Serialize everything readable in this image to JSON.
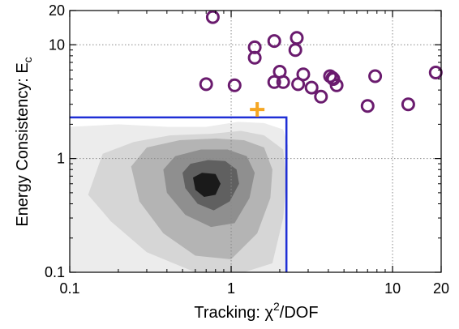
{
  "chart_data": {
    "type": "scatter",
    "x_scale": "log",
    "y_scale": "log",
    "xlim": [
      0.1,
      20
    ],
    "ylim": [
      0.1,
      20
    ],
    "grid": true,
    "xlabel": {
      "main": "Tracking:  χ",
      "sup": "2",
      "rest": "/DOF"
    },
    "ylabel": {
      "main": "Energy Consistency:  E",
      "sub": "c"
    },
    "x_ticks": [
      {
        "value": 0.1,
        "label": "0.1"
      },
      {
        "value": 1,
        "label": "1"
      },
      {
        "value": 10,
        "label": "10"
      },
      {
        "value": 20,
        "label": "20"
      }
    ],
    "y_ticks": [
      {
        "value": 0.1,
        "label": "0.1"
      },
      {
        "value": 1,
        "label": "1"
      },
      {
        "value": 10,
        "label": "10"
      },
      {
        "value": 20,
        "label": "20"
      }
    ],
    "colors": {
      "points": "#6a1b6e",
      "box": "#1f2fd6",
      "marker": "#f5a623",
      "grid": "#888888",
      "contours": [
        "#ececec",
        "#d6d6d6",
        "#b4b4b4",
        "#8f8f8f",
        "#606060",
        "#1a1a1a"
      ]
    },
    "selection_box": {
      "x_max": 2.2,
      "y_max": 2.3
    },
    "special_marker": {
      "x": 1.45,
      "y": 2.7,
      "shape": "plus"
    },
    "points": [
      {
        "x": 0.77,
        "y": 17.5
      },
      {
        "x": 1.4,
        "y": 9.5
      },
      {
        "x": 1.4,
        "y": 7.7
      },
      {
        "x": 1.85,
        "y": 10.8
      },
      {
        "x": 2.55,
        "y": 11.5
      },
      {
        "x": 2.5,
        "y": 9.0
      },
      {
        "x": 0.7,
        "y": 4.5
      },
      {
        "x": 1.05,
        "y": 4.4
      },
      {
        "x": 1.85,
        "y": 4.7
      },
      {
        "x": 2.0,
        "y": 5.8
      },
      {
        "x": 2.1,
        "y": 4.7
      },
      {
        "x": 2.6,
        "y": 4.5
      },
      {
        "x": 2.8,
        "y": 5.5
      },
      {
        "x": 3.15,
        "y": 4.2
      },
      {
        "x": 3.6,
        "y": 3.5
      },
      {
        "x": 4.1,
        "y": 5.3
      },
      {
        "x": 4.25,
        "y": 5.1
      },
      {
        "x": 4.3,
        "y": 5.0
      },
      {
        "x": 4.5,
        "y": 4.4
      },
      {
        "x": 7.0,
        "y": 2.9
      },
      {
        "x": 7.8,
        "y": 5.3
      },
      {
        "x": 12.5,
        "y": 3.0
      },
      {
        "x": 18.5,
        "y": 5.7
      }
    ],
    "density_contours": [
      [
        [
          0.1,
          0.1
        ],
        [
          0.1,
          1.9
        ],
        [
          0.2,
          2.0
        ],
        [
          0.4,
          1.9
        ],
        [
          0.7,
          1.9
        ],
        [
          1.1,
          2.1
        ],
        [
          1.6,
          2.05
        ],
        [
          2.1,
          1.8
        ],
        [
          2.25,
          1.3
        ],
        [
          2.25,
          0.6
        ],
        [
          2.22,
          0.1
        ]
      ],
      [
        [
          0.13,
          0.48
        ],
        [
          0.16,
          1.1
        ],
        [
          0.25,
          1.4
        ],
        [
          0.42,
          1.6
        ],
        [
          0.75,
          1.65
        ],
        [
          1.15,
          1.75
        ],
        [
          1.6,
          1.6
        ],
        [
          2.1,
          1.2
        ],
        [
          2.2,
          0.65
        ],
        [
          2.1,
          0.3
        ],
        [
          1.8,
          0.12
        ],
        [
          1.2,
          0.1
        ],
        [
          0.6,
          0.1
        ],
        [
          0.3,
          0.15
        ],
        [
          0.18,
          0.28
        ]
      ],
      [
        [
          0.27,
          0.42
        ],
        [
          0.24,
          0.85
        ],
        [
          0.3,
          1.25
        ],
        [
          0.48,
          1.45
        ],
        [
          0.8,
          1.5
        ],
        [
          1.2,
          1.45
        ],
        [
          1.6,
          1.25
        ],
        [
          1.8,
          0.8
        ],
        [
          1.75,
          0.45
        ],
        [
          1.45,
          0.22
        ],
        [
          1.0,
          0.13
        ],
        [
          0.6,
          0.14
        ],
        [
          0.38,
          0.22
        ]
      ],
      [
        [
          0.4,
          0.5
        ],
        [
          0.38,
          0.8
        ],
        [
          0.45,
          1.05
        ],
        [
          0.65,
          1.2
        ],
        [
          0.95,
          1.2
        ],
        [
          1.25,
          1.05
        ],
        [
          1.4,
          0.75
        ],
        [
          1.3,
          0.45
        ],
        [
          1.05,
          0.27
        ],
        [
          0.75,
          0.25
        ],
        [
          0.52,
          0.32
        ]
      ],
      [
        [
          0.52,
          0.55
        ],
        [
          0.5,
          0.75
        ],
        [
          0.56,
          0.9
        ],
        [
          0.72,
          0.97
        ],
        [
          0.92,
          0.95
        ],
        [
          1.08,
          0.8
        ],
        [
          1.12,
          0.6
        ],
        [
          0.98,
          0.42
        ],
        [
          0.78,
          0.35
        ],
        [
          0.62,
          0.4
        ]
      ],
      [
        [
          0.6,
          0.53
        ],
        [
          0.58,
          0.68
        ],
        [
          0.66,
          0.75
        ],
        [
          0.8,
          0.73
        ],
        [
          0.86,
          0.6
        ],
        [
          0.8,
          0.48
        ],
        [
          0.68,
          0.46
        ]
      ]
    ]
  }
}
